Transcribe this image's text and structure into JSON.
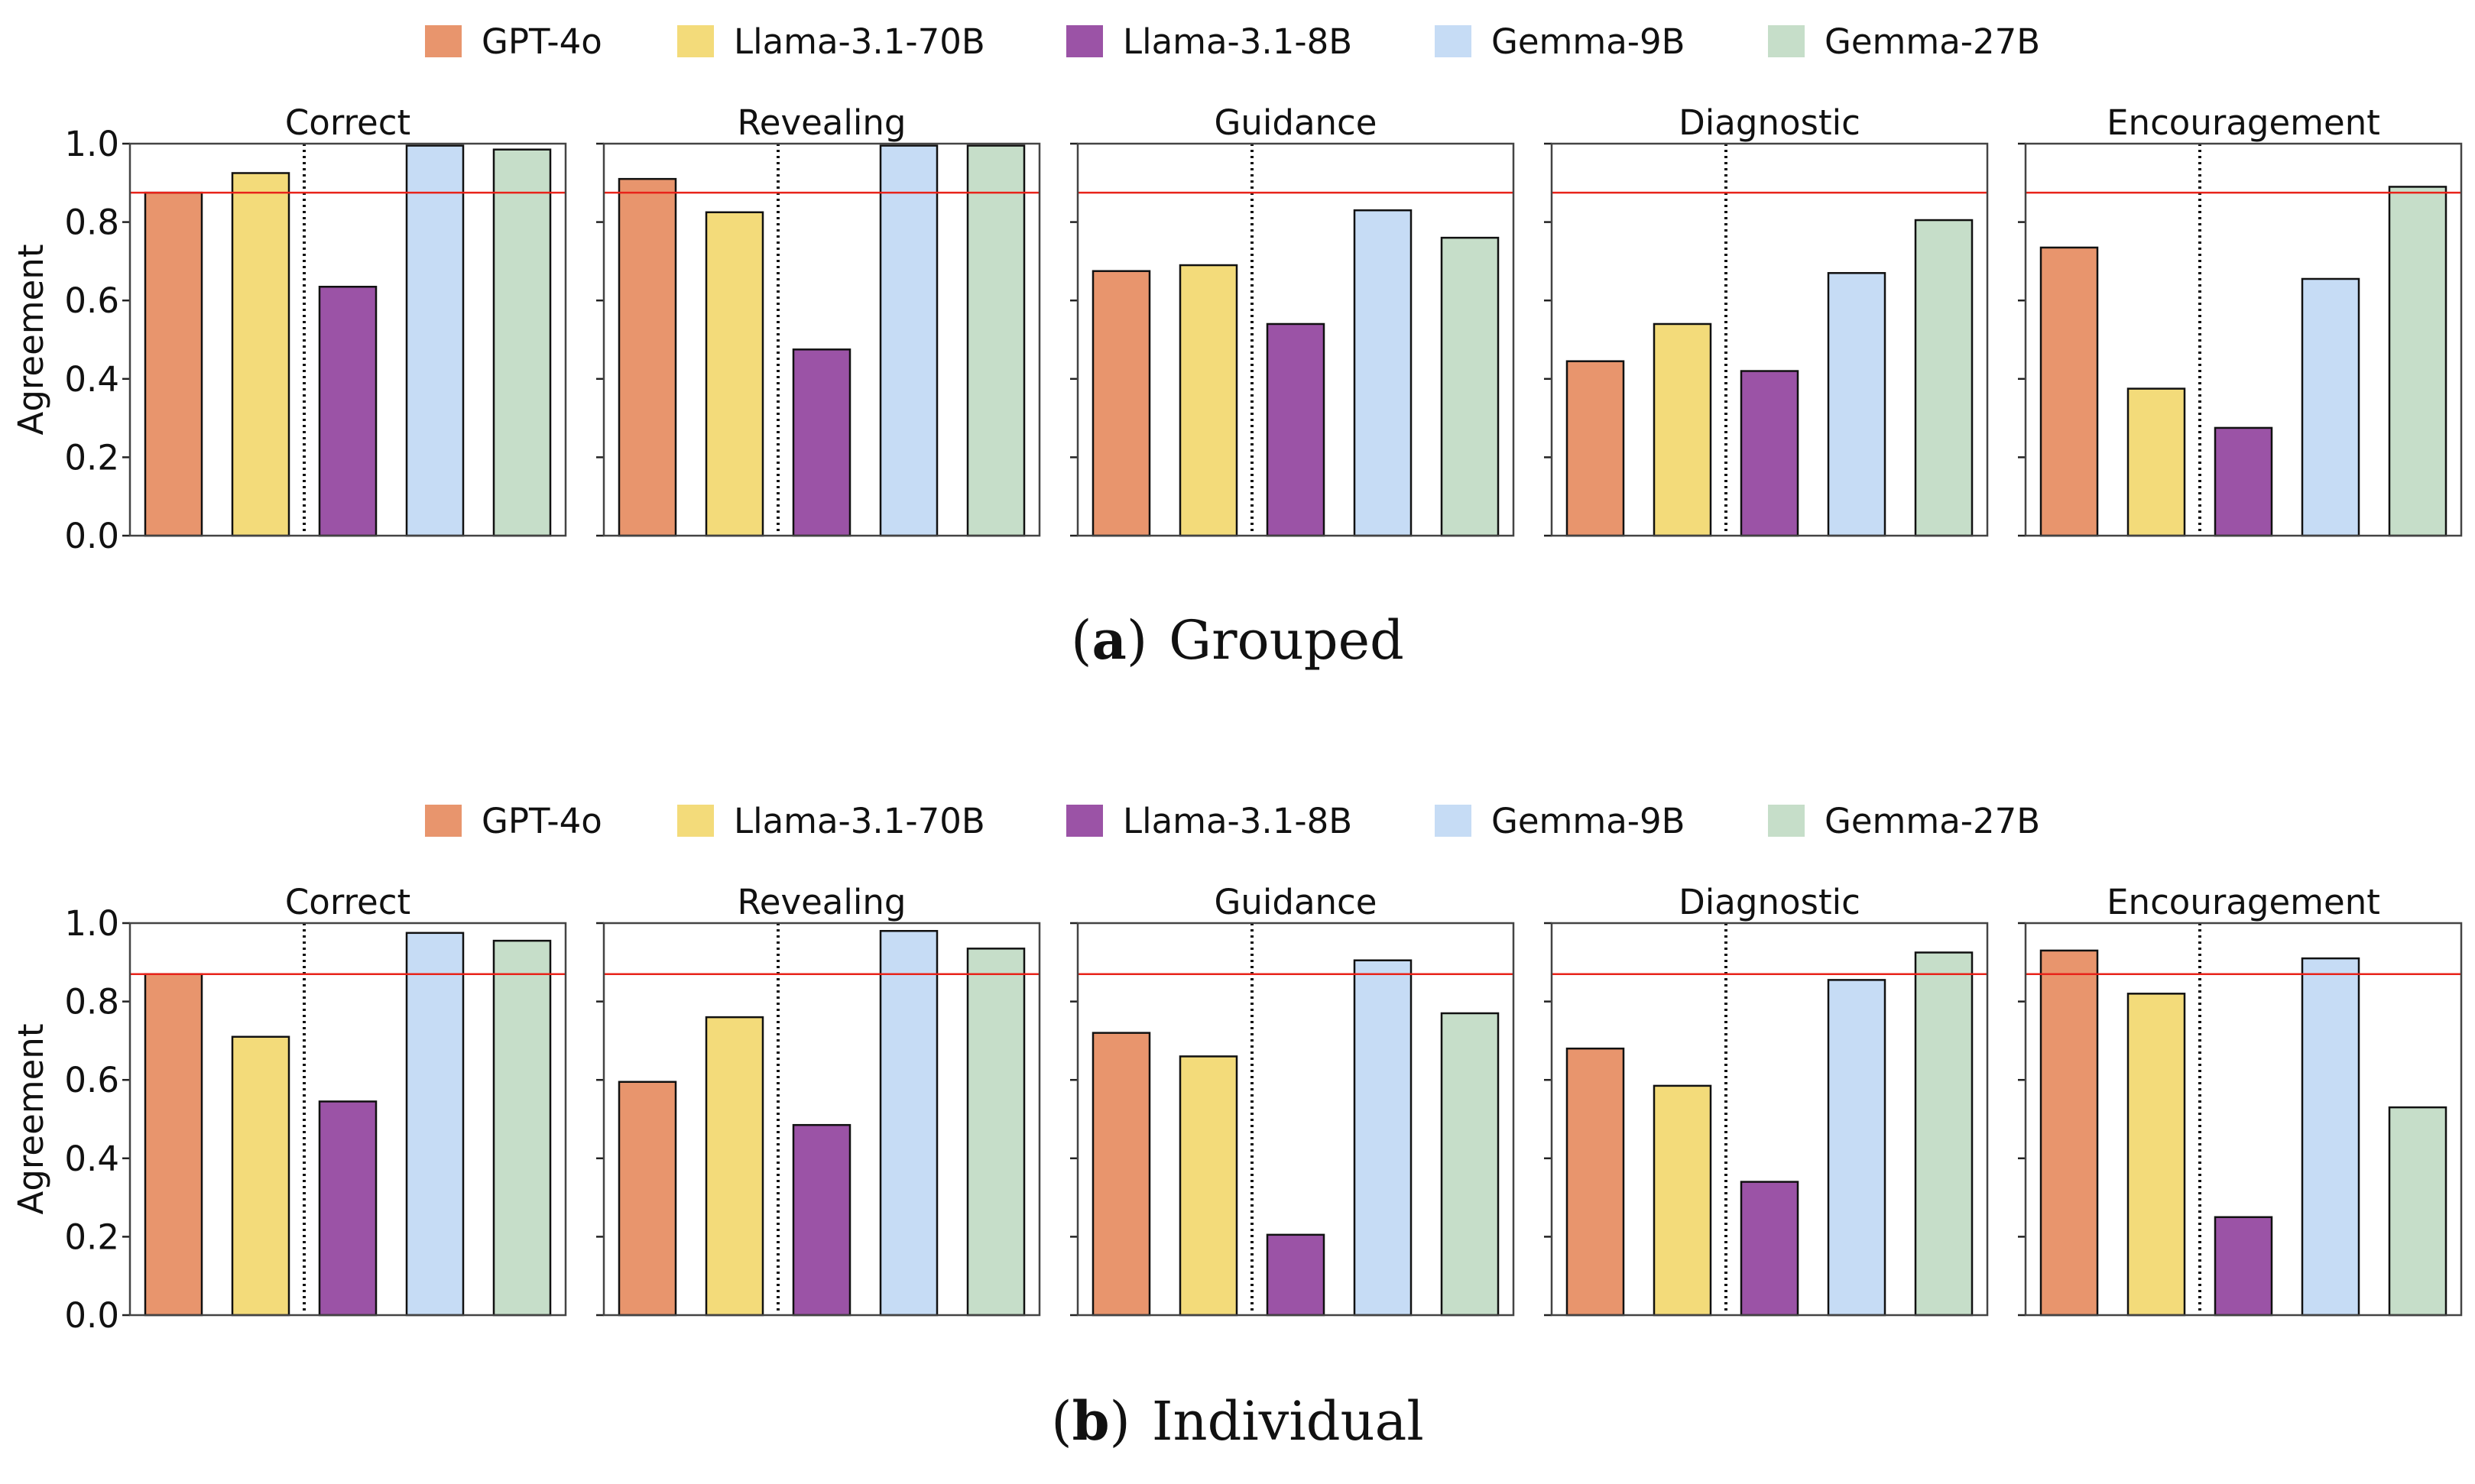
{
  "figure": {
    "groups": [
      {
        "id": "grouped",
        "caption": {
          "label": "a",
          "text": "Grouped"
        },
        "ylabel": "Agreement"
      },
      {
        "id": "individual",
        "caption": {
          "label": "b",
          "text": "Individual"
        },
        "ylabel": "Agreement"
      }
    ]
  },
  "chart_data": [
    {
      "type": "bar",
      "title": "Grouped",
      "ylabel": "Agreement",
      "ylim": [
        0,
        1.0
      ],
      "yticks": [
        "0.0",
        "0.2",
        "0.4",
        "0.6",
        "0.8",
        "1.0"
      ],
      "legend": [
        "GPT-4o",
        "Llama-3.1-70B",
        "Llama-3.1-8B",
        "Gemma-9B",
        "Gemma-27B"
      ],
      "colors": [
        "#E8956D",
        "#F3DB7A",
        "#9B53A6",
        "#C6DCF5",
        "#C6DEC9"
      ],
      "reference_line": 0.875,
      "reference_color": "#E8231A",
      "panels": [
        {
          "title": "Correct",
          "values": [
            0.875,
            0.925,
            0.635,
            0.995,
            0.985
          ]
        },
        {
          "title": "Revealing",
          "values": [
            0.91,
            0.825,
            0.475,
            0.995,
            0.995
          ]
        },
        {
          "title": "Guidance",
          "values": [
            0.675,
            0.69,
            0.54,
            0.83,
            0.76
          ]
        },
        {
          "title": "Diagnostic",
          "values": [
            0.445,
            0.54,
            0.42,
            0.67,
            0.805
          ]
        },
        {
          "title": "Encouragement",
          "values": [
            0.735,
            0.375,
            0.275,
            0.655,
            0.89
          ]
        }
      ]
    },
    {
      "type": "bar",
      "title": "Individual",
      "ylabel": "Agreement",
      "ylim": [
        0,
        1.0
      ],
      "yticks": [
        "0.0",
        "0.2",
        "0.4",
        "0.6",
        "0.8",
        "1.0"
      ],
      "legend": [
        "GPT-4o",
        "Llama-3.1-70B",
        "Llama-3.1-8B",
        "Gemma-9B",
        "Gemma-27B"
      ],
      "colors": [
        "#E8956D",
        "#F3DB7A",
        "#9B53A6",
        "#C6DCF5",
        "#C6DEC9"
      ],
      "reference_line": 0.87,
      "reference_color": "#E8231A",
      "panels": [
        {
          "title": "Correct",
          "values": [
            0.87,
            0.71,
            0.545,
            0.975,
            0.955
          ]
        },
        {
          "title": "Revealing",
          "values": [
            0.595,
            0.76,
            0.485,
            0.98,
            0.935
          ]
        },
        {
          "title": "Guidance",
          "values": [
            0.72,
            0.66,
            0.205,
            0.905,
            0.77
          ]
        },
        {
          "title": "Diagnostic",
          "values": [
            0.68,
            0.585,
            0.34,
            0.855,
            0.925
          ]
        },
        {
          "title": "Encouragement",
          "values": [
            0.93,
            0.82,
            0.25,
            0.91,
            0.53
          ]
        }
      ]
    }
  ]
}
